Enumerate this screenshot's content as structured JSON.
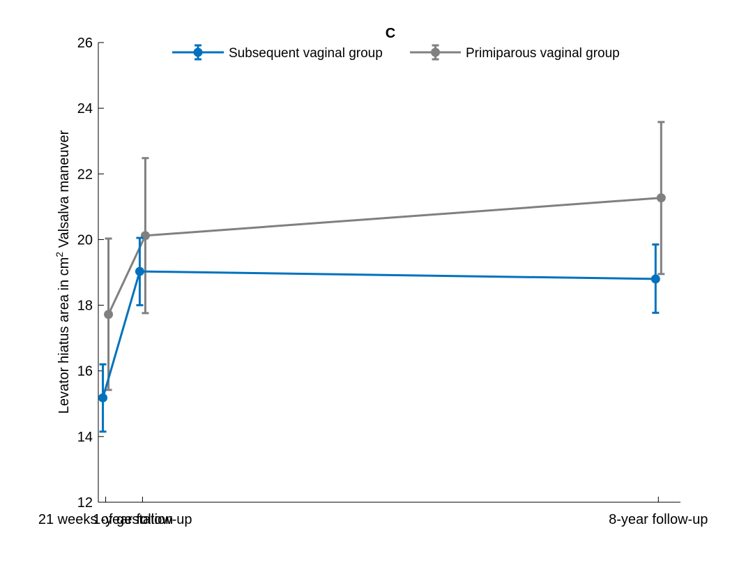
{
  "chart_data": {
    "type": "line",
    "title": "C",
    "xlabel": "",
    "ylabel": "Levator hiatus area in cm",
    "ylabel_superscript": "2",
    "ylabel_suffix": " Valsalva maneuver",
    "categories": [
      "21 weeks of gestation",
      "1-year follow-up",
      "8-year follow-up"
    ],
    "x": [
      0.5,
      1,
      8
    ],
    "ylim": [
      12,
      26
    ],
    "yticks": [
      12,
      14,
      16,
      18,
      20,
      22,
      24,
      26
    ],
    "grid": false,
    "legend_position": "top",
    "series": [
      {
        "name": "Subsequent vaginal group",
        "color": "#0072BD",
        "values": [
          15.18,
          19.03,
          18.8
        ],
        "err_low": [
          14.15,
          18.0,
          17.77
        ],
        "err_high": [
          16.2,
          20.05,
          19.85
        ]
      },
      {
        "name": "Primiparous vaginal group",
        "color": "#808080",
        "values": [
          17.72,
          20.12,
          21.27
        ],
        "err_low": [
          15.42,
          17.76,
          18.95
        ],
        "err_high": [
          20.03,
          22.48,
          23.58
        ]
      }
    ]
  }
}
